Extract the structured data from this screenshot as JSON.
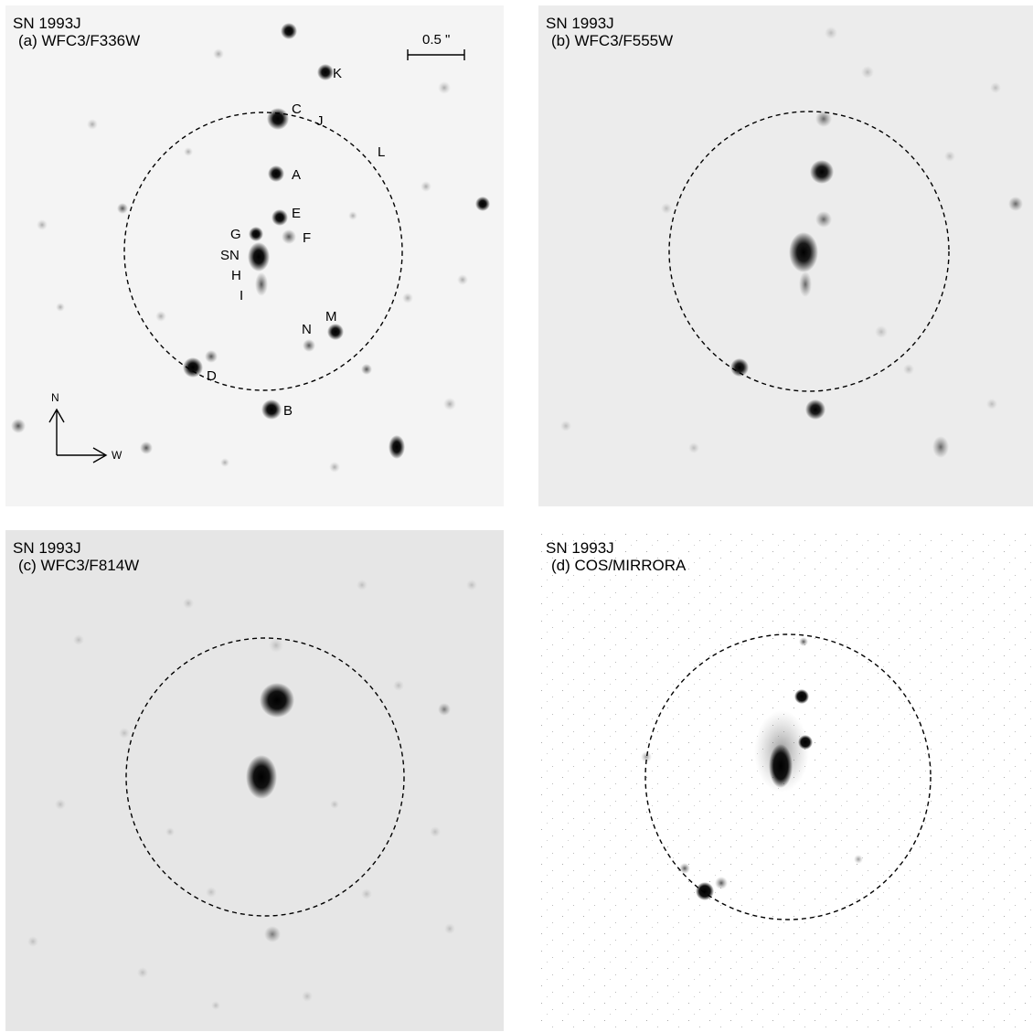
{
  "panels": [
    {
      "id": "a",
      "object": "SN 1993J",
      "label": "(a) WFC3/F336W"
    },
    {
      "id": "b",
      "object": "SN 1993J",
      "label": "(b) WFC3/F555W"
    },
    {
      "id": "c",
      "object": "SN 1993J",
      "label": "(c) WFC3/F814W"
    },
    {
      "id": "d",
      "object": "SN 1993J",
      "label": "(d) COS/MIRRORA"
    }
  ],
  "scale_bar": {
    "label": "0.5 \""
  },
  "compass": {
    "north": "N",
    "west": "W"
  },
  "star_labels": {
    "c": "C",
    "k": "K",
    "j": "J",
    "l": "L",
    "a": "A",
    "e": "E",
    "f": "F",
    "g": "G",
    "sn": "SN",
    "h": "H",
    "i": "I",
    "m": "M",
    "n": "N",
    "d": "D",
    "b": "B"
  }
}
